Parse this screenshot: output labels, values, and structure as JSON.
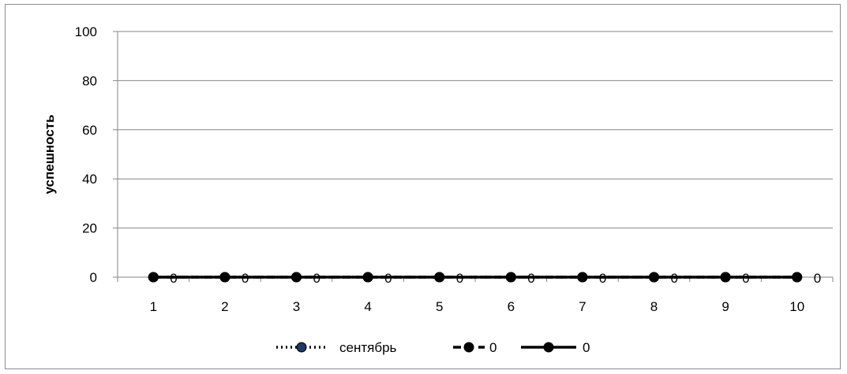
{
  "chart_data": {
    "type": "line",
    "title": "",
    "xlabel": "",
    "ylabel": "успешность",
    "x": [
      1,
      2,
      3,
      4,
      5,
      6,
      7,
      8,
      9,
      10
    ],
    "categories": [
      "1",
      "2",
      "3",
      "4",
      "5",
      "6",
      "7",
      "8",
      "9",
      "10"
    ],
    "ylim": [
      0,
      100
    ],
    "yticks": [
      0,
      20,
      40,
      60,
      80,
      100
    ],
    "grid": "horizontal",
    "legend_position": "bottom",
    "series": [
      {
        "name": "сентябрь",
        "values": [
          0,
          0,
          0,
          0,
          0,
          0,
          0,
          0,
          0,
          0
        ],
        "style": "dotted",
        "color": "#000000",
        "marker_color": "#1f3864"
      },
      {
        "name": "0",
        "values": [
          0,
          0,
          0,
          0,
          0,
          0,
          0,
          0,
          0,
          0
        ],
        "style": "dashed",
        "color": "#000000"
      },
      {
        "name": "0",
        "values": [
          0,
          0,
          0,
          0,
          0,
          0,
          0,
          0,
          0,
          0
        ],
        "style": "solid",
        "color": "#000000",
        "data_labels": [
          "0",
          "0",
          "0",
          "0",
          "0",
          "0",
          "0",
          "0",
          "0",
          "0"
        ]
      }
    ]
  }
}
